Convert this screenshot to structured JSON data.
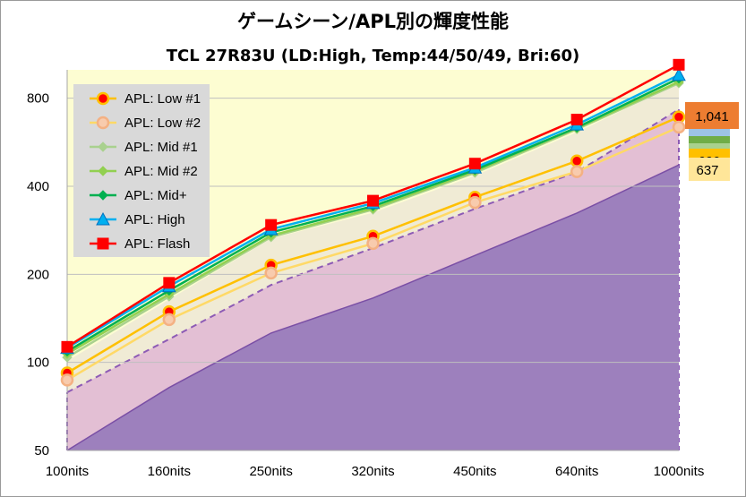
{
  "chart_data": {
    "type": "area",
    "title": "ゲームシーン/APL別の輝度性能",
    "subtitle": "TCL 27R83U (LD:High, Temp:44/50/49, Bri:60)",
    "xlabel": "",
    "ylabel": "",
    "y_scale": "log2",
    "ylim": [
      50,
      1000
    ],
    "yticks": [
      50,
      100,
      200,
      400,
      800
    ],
    "grid": "horizontal",
    "legend_position": "top-left",
    "categories": [
      "100nits",
      "160nits",
      "250nits",
      "320nits",
      "450nits",
      "640nits",
      "1000nits"
    ],
    "background_areas": [
      {
        "color": "#9d80bd",
        "values": [
          50,
          82,
          126,
          166,
          232,
          324,
          473
        ]
      },
      {
        "color": "#e3bfd4",
        "dashed_top": true,
        "line_color": "#8d5bb5",
        "values": [
          79,
          120,
          184,
          246,
          335,
          447,
          733
        ]
      },
      {
        "color": "#f0ebd5",
        "values": [
          101,
          164,
          265,
          325,
          435,
          612,
          900
        ]
      },
      {
        "color": "#fdfdd2",
        "values": [
          1000,
          1000,
          1000,
          1000,
          1000,
          1000,
          1000
        ]
      }
    ],
    "series": [
      {
        "name": "APL: Low #1",
        "color": "#ffc000",
        "marker": "circle",
        "marker_fill": "#ff0000",
        "values": [
          92,
          149,
          215,
          270,
          367,
          488,
          690
        ]
      },
      {
        "name": "APL: Low #2",
        "color": "#ffd966",
        "marker": "circle",
        "marker_fill": "#f4b183",
        "values": [
          87,
          140,
          202,
          255,
          352,
          449,
          637
        ]
      },
      {
        "name": "APL: Mid #1",
        "color": "#a9d18e",
        "marker": "diamond",
        "marker_fill": "#a9d18e",
        "values": [
          104,
          168,
          268,
          333,
          445,
          627,
          900
        ]
      },
      {
        "name": "APL: Mid #2",
        "color": "#92d050",
        "marker": "diamond",
        "marker_fill": "#92d050",
        "values": [
          107,
          171,
          271,
          336,
          450,
          632,
          910
        ]
      },
      {
        "name": "APL: Mid+",
        "color": "#00b050",
        "marker": "diamond",
        "marker_fill": "#00b050",
        "values": [
          109,
          176,
          278,
          342,
          455,
          635,
          935
        ]
      },
      {
        "name": "APL: High",
        "color": "#00b0f0",
        "marker": "triangle",
        "marker_fill": "#00b0f0",
        "values": [
          112,
          182,
          285,
          350,
          463,
          650,
          960
        ]
      },
      {
        "name": "APL: Flash",
        "color": "#ff0000",
        "marker": "square",
        "marker_fill": "#ff0000",
        "values": [
          113,
          187,
          295,
          357,
          478,
          676,
          1041
        ]
      }
    ],
    "end_labels": [
      {
        "text": "1,041",
        "bg": "#ed7d31",
        "color": "#000000"
      },
      {
        "text": "690",
        "bg": "#ffc000",
        "color": "#000000"
      },
      {
        "text": "637",
        "bg": "#ffe699",
        "color": "#000000"
      }
    ]
  }
}
